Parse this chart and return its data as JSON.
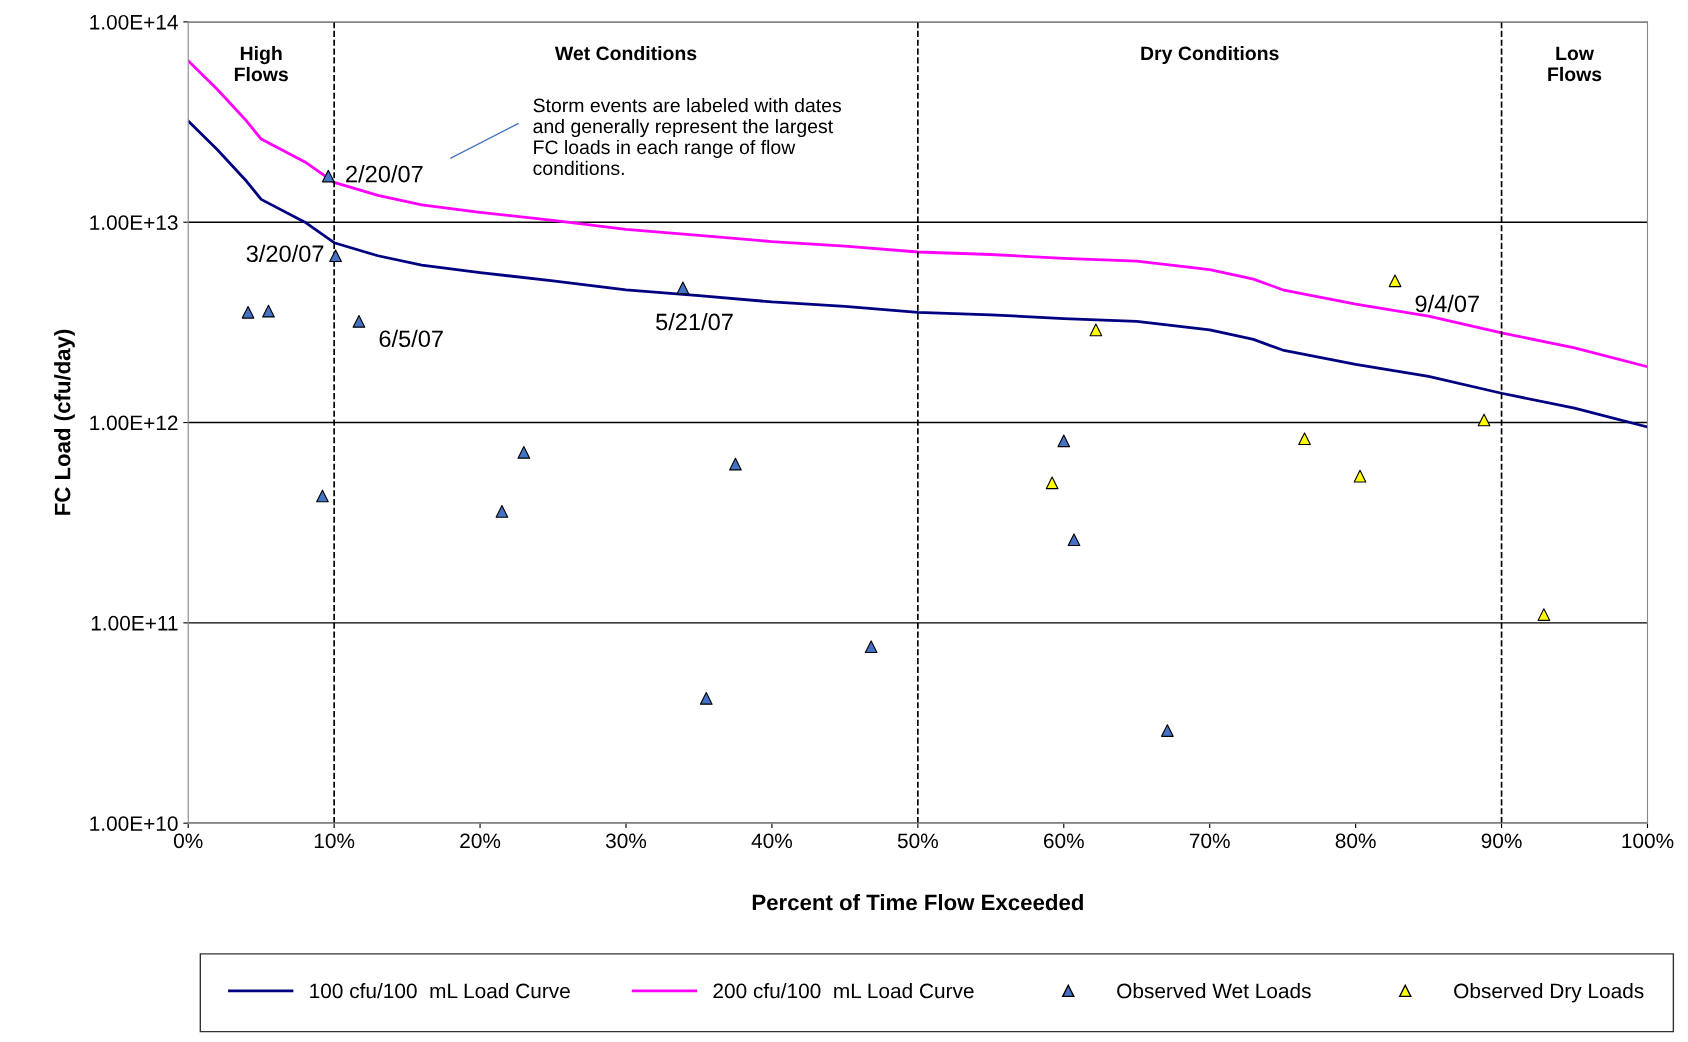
{
  "chart_data": {
    "type": "line",
    "xlabel": "Percent of Time Flow Exceeded",
    "ylabel": "FC Load (cfu/day)",
    "log": "y",
    "xlim": [
      0,
      100
    ],
    "ylim": [
      10000000000.0,
      100000000000000.0
    ],
    "xticks": [
      {
        "value": 0,
        "label": "0%"
      },
      {
        "value": 10,
        "label": "10%"
      },
      {
        "value": 20,
        "label": "20%"
      },
      {
        "value": 30,
        "label": "30%"
      },
      {
        "value": 40,
        "label": "40%"
      },
      {
        "value": 50,
        "label": "50%"
      },
      {
        "value": 60,
        "label": "60%"
      },
      {
        "value": 70,
        "label": "70%"
      },
      {
        "value": 80,
        "label": "80%"
      },
      {
        "value": 90,
        "label": "90%"
      },
      {
        "value": 100,
        "label": "100%"
      }
    ],
    "yticks": [
      {
        "value": 10000000000.0,
        "label": "1.00E+10"
      },
      {
        "value": 100000000000.0,
        "label": "1.00E+11"
      },
      {
        "value": 1000000000000.0,
        "label": "1.00E+12"
      },
      {
        "value": 10000000000000.0,
        "label": "1.00E+13"
      },
      {
        "value": 100000000000000.0,
        "label": "1.00E+14"
      }
    ],
    "grid": "y",
    "legend": "bottom",
    "series": [
      {
        "name": "100 cfu/100  mL Load Curve",
        "color": "#000080",
        "x": [
          0,
          2,
          4,
          5,
          8,
          10,
          13,
          16,
          20,
          25,
          30,
          35,
          40,
          45,
          50,
          55,
          60,
          65,
          70,
          73,
          75,
          80,
          85,
          90,
          95,
          100
        ],
        "values": [
          32000000000000.0,
          23000000000000.0,
          16000000000000.0,
          13000000000000.0,
          10000000000000.0,
          7900000000000.0,
          6800000000000.0,
          6100000000000.0,
          5600000000000.0,
          5100000000000.0,
          4600000000000.0,
          4300000000000.0,
          4000000000000.0,
          3800000000000.0,
          3550000000000.0,
          3450000000000.0,
          3300000000000.0,
          3200000000000.0,
          2900000000000.0,
          2600000000000.0,
          2300000000000.0,
          1950000000000.0,
          1700000000000.0,
          1400000000000.0,
          1180000000000.0,
          950000000000.0
        ]
      },
      {
        "name": "200 cfu/100  mL Load Curve",
        "color": "#ff00ff",
        "x": [
          0,
          2,
          4,
          5,
          8,
          10,
          13,
          16,
          20,
          25,
          30,
          35,
          40,
          45,
          50,
          55,
          60,
          65,
          70,
          73,
          75,
          80,
          85,
          90,
          95,
          100
        ],
        "values": [
          64000000000000.0,
          46000000000000.0,
          32000000000000.0,
          26000000000000.0,
          20000000000000.0,
          15800000000000.0,
          13600000000000.0,
          12200000000000.0,
          11200000000000.0,
          10200000000000.0,
          9200000000000.0,
          8600000000000.0,
          8000000000000.0,
          7600000000000.0,
          7100000000000.0,
          6900000000000.0,
          6600000000000.0,
          6400000000000.0,
          5800000000000.0,
          5200000000000.0,
          4600000000000.0,
          3900000000000.0,
          3400000000000.0,
          2800000000000.0,
          2360000000000.0,
          1900000000000.0
        ]
      },
      {
        "name": "Observed Wet Loads",
        "type": "scatter",
        "marker": "triangle",
        "color": "#4472c4",
        "x": [
          4.1,
          5.5,
          9.2,
          9.6,
          10.1,
          11.7,
          21.5,
          23.0,
          33.9,
          35.5,
          37.5,
          46.8,
          60.0,
          60.7,
          67.1
        ],
        "values": [
          3550000000000.0,
          3600000000000.0,
          430000000000.0,
          17000000000000.0,
          6800000000000.0,
          3200000000000.0,
          360000000000.0,
          710000000000.0,
          4700000000000.0,
          42000000000.0,
          620000000000.0,
          76000000000.0,
          810000000000.0,
          260000000000.0,
          29000000000.0
        ]
      },
      {
        "name": "Observed Dry Loads",
        "type": "scatter",
        "marker": "triangle",
        "color": "#ffff00",
        "x": [
          59.2,
          62.2,
          76.5,
          80.3,
          82.7,
          88.8,
          92.9
        ],
        "values": [
          500000000000.0,
          2900000000000.0,
          830000000000.0,
          540000000000.0,
          5100000000000.0,
          1030000000000.0,
          110000000000.0
        ]
      }
    ],
    "ref_lines": [
      {
        "axis": "x",
        "value": 10,
        "color": "#000000",
        "line_style": "dashed"
      },
      {
        "axis": "x",
        "value": 50,
        "color": "#000000",
        "line_style": "dashed"
      },
      {
        "axis": "x",
        "value": 90,
        "color": "#000000",
        "line_style": "dashed"
      }
    ],
    "annotations": [
      "High\nFlows",
      "Wet Conditions",
      "Dry Conditions",
      "Low\nFlows",
      {
        "text": "2/20/07",
        "x": 9.6,
        "y": 17000000000000.0
      },
      {
        "text": "3/20/07",
        "x": 10.1,
        "y": 6800000000000.0
      },
      {
        "text": "6/5/07",
        "x": 11.7,
        "y": 3200000000000.0
      },
      {
        "text": "5/21/07",
        "x": 33.9,
        "y": 4700000000000.0
      },
      {
        "text": "9/4/07",
        "x": 82.7,
        "y": 5100000000000.0
      },
      "Storm events are labeled with dates\nand generally represent the largest\nFC loads in each range of flow\nconditions."
    ]
  }
}
